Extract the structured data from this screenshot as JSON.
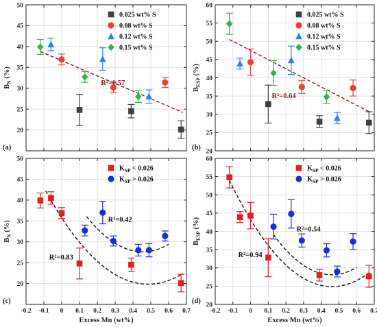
{
  "panels": [
    {
      "id": "a",
      "panel_label": "(a)",
      "ylabel_main": "B",
      "ylabel_sub": "N",
      "ylabel_tail": " (%)",
      "yticks": [
        20,
        25,
        30,
        35,
        40,
        45,
        50
      ],
      "show_xticks": false,
      "legend": [
        {
          "label": "0.025 wt% S",
          "marker": "square",
          "color": "#404040"
        },
        {
          "label": "0.08 wt% S",
          "marker": "circle",
          "color": "#e8423c"
        },
        {
          "label": "0.12 wt% S",
          "marker": "triangle",
          "color": "#2f86d9"
        },
        {
          "label": "0.15 wt% S",
          "marker": "diamond",
          "color": "#3dae56"
        }
      ],
      "annotations": [
        {
          "text": "R²=0.57",
          "x": 0.22,
          "y": 30.8,
          "color": "#8b1a1a"
        }
      ],
      "fits": [
        {
          "type": "line",
          "x0": -0.12,
          "x1": 0.68,
          "y": [
            38.8,
            24.2
          ],
          "color": "#8b1a1a"
        }
      ]
    },
    {
      "id": "b",
      "panel_label": "(b)",
      "ylabel_main": "B",
      "ylabel_sub": "ESP",
      "ylabel_tail": " (%)",
      "yticks": [
        20,
        25,
        30,
        35,
        40,
        45,
        50,
        55,
        60
      ],
      "show_xticks": false,
      "legend": [
        {
          "label": "0.025 wt% S",
          "marker": "square",
          "color": "#404040"
        },
        {
          "label": "0.08 wt% S",
          "marker": "circle",
          "color": "#e8423c"
        },
        {
          "label": "0.12 wt% S",
          "marker": "triangle",
          "color": "#2f86d9"
        },
        {
          "label": "0.15 wt% S",
          "marker": "diamond",
          "color": "#3dae56"
        }
      ],
      "annotations": [
        {
          "text": "R²=0.64",
          "x": 0.12,
          "y": 34.5,
          "color": "#8b1a1a"
        }
      ],
      "fits": [
        {
          "type": "line",
          "x0": -0.12,
          "x1": 0.68,
          "y": [
            50.5,
            30.5
          ],
          "color": "#8b1a1a"
        }
      ]
    },
    {
      "id": "c",
      "panel_label": "(c)",
      "ylabel_main": "B",
      "ylabel_sub": "N",
      "ylabel_tail": " (%)",
      "yticks": [
        20,
        25,
        30,
        35,
        40,
        45,
        50
      ],
      "show_xticks": true,
      "legend": [
        {
          "label": "K",
          "sub": "SP",
          "tail": " < 0.026",
          "marker": "square",
          "color": "#e81e1e"
        },
        {
          "label": "K",
          "sub": "SP",
          "tail": " > 0.026",
          "marker": "circle",
          "color": "#1f2bd6"
        }
      ],
      "annotations": [
        {
          "text": "R²=0.42",
          "x": 0.26,
          "y": 34.8,
          "color": "#111"
        },
        {
          "text": "R²=0.83",
          "x": -0.07,
          "y": 25.8,
          "color": "#111"
        }
      ],
      "fits": [
        {
          "type": "quad",
          "x0": 0.14,
          "x1": 0.6,
          "coef": [
            45.22,
            -77.44,
            85.1
          ],
          "color": "#111"
        },
        {
          "type": "quad",
          "x0": -0.09,
          "x1": 0.68,
          "coef": [
            35.75,
            -65.6,
            67.6
          ],
          "color": "#111"
        }
      ]
    },
    {
      "id": "d",
      "panel_label": "(d)",
      "ylabel_main": "B",
      "ylabel_sub": "ESP",
      "ylabel_tail": " (%)",
      "yticks": [
        20,
        25,
        30,
        35,
        40,
        45,
        50,
        55,
        60
      ],
      "show_xticks": true,
      "legend": [
        {
          "label": "K",
          "sub": "SP",
          "tail": " < 0.026",
          "marker": "square",
          "color": "#e81e1e"
        },
        {
          "label": "K",
          "sub": "SP",
          "tail": " > 0.026",
          "marker": "circle",
          "color": "#1f2bd6"
        }
      ],
      "annotations": [
        {
          "text": "R²=0.54",
          "x": 0.26,
          "y": 40.0,
          "color": "#111"
        },
        {
          "text": "R²=0.94",
          "x": -0.07,
          "y": 33.0,
          "color": "#111"
        }
      ],
      "fits": [
        {
          "type": "quad",
          "x0": 0.13,
          "x1": 0.6,
          "coef": [
            49.5,
            -93.1,
            101.3
          ],
          "color": "#111"
        },
        {
          "type": "quad",
          "x0": -0.12,
          "x1": 0.68,
          "coef": [
            43.23,
            -79.5,
            86.1
          ],
          "color": "#111"
        }
      ]
    }
  ],
  "xticks": [
    -0.2,
    -0.1,
    0,
    0.1,
    0.2,
    0.3,
    0.4,
    0.5,
    0.6,
    0.7
  ],
  "xtick_labels": [
    "-0.2",
    "-0.1",
    "0",
    "0.1",
    "0.2",
    "0.3",
    "0.4",
    "0.5",
    "0.6",
    "0.7"
  ],
  "xlabel": "Excess Mn (wt%)",
  "chart_data": [
    {
      "type": "scatter",
      "panel": "a",
      "xlim": [
        -0.2,
        0.7
      ],
      "ylim": [
        15,
        50
      ],
      "xlabel": "",
      "ylabel": "BN (%)",
      "legend_position": "top-right",
      "grid": true,
      "series": [
        {
          "name": "0.025 wt% S",
          "marker": "square",
          "color": "#404040",
          "points": [
            {
              "x": 0.1,
              "y": 24.8,
              "err": 3.7
            },
            {
              "x": 0.39,
              "y": 24.5,
              "err": 1.6
            },
            {
              "x": 0.67,
              "y": 20.1,
              "err": 2.1
            }
          ]
        },
        {
          "name": "0.08 wt% S",
          "marker": "circle",
          "color": "#e8423c",
          "points": [
            {
              "x": 0.0,
              "y": 36.9,
              "err": 1.3
            },
            {
              "x": 0.29,
              "y": 30.2,
              "err": 1.2
            },
            {
              "x": 0.58,
              "y": 31.4,
              "err": 1.2
            }
          ]
        },
        {
          "name": "0.12 wt% S",
          "marker": "triangle",
          "color": "#2f86d9",
          "points": [
            {
              "x": -0.06,
              "y": 40.5,
              "err": 1.5
            },
            {
              "x": 0.23,
              "y": 37.0,
              "err": 2.7
            },
            {
              "x": 0.49,
              "y": 28.0,
              "err": 1.6
            }
          ]
        },
        {
          "name": "0.15 wt% S",
          "marker": "diamond",
          "color": "#3dae56",
          "points": [
            {
              "x": -0.12,
              "y": 39.9,
              "err": 1.8
            },
            {
              "x": 0.13,
              "y": 32.7,
              "err": 1.3
            },
            {
              "x": 0.43,
              "y": 28.0,
              "err": 1.4
            }
          ]
        }
      ]
    },
    {
      "type": "scatter",
      "panel": "b",
      "xlim": [
        -0.2,
        0.7
      ],
      "ylim": [
        20,
        60
      ],
      "xlabel": "",
      "ylabel": "BESP (%)",
      "legend_position": "top-right",
      "grid": true,
      "series": [
        {
          "name": "0.025 wt% S",
          "marker": "square",
          "color": "#404040",
          "points": [
            {
              "x": 0.1,
              "y": 32.8,
              "err": 5.2
            },
            {
              "x": 0.39,
              "y": 28.0,
              "err": 1.6
            },
            {
              "x": 0.67,
              "y": 27.7,
              "err": 3.0
            }
          ]
        },
        {
          "name": "0.08 wt% S",
          "marker": "circle",
          "color": "#e8423c",
          "points": [
            {
              "x": 0.0,
              "y": 44.3,
              "err": 3.6
            },
            {
              "x": 0.29,
              "y": 37.5,
              "err": 1.8
            },
            {
              "x": 0.58,
              "y": 37.2,
              "err": 2.2
            }
          ]
        },
        {
          "name": "0.12 wt% S",
          "marker": "triangle",
          "color": "#2f86d9",
          "points": [
            {
              "x": -0.06,
              "y": 43.9,
              "err": 1.5
            },
            {
              "x": 0.23,
              "y": 44.8,
              "err": 3.9
            },
            {
              "x": 0.49,
              "y": 29.0,
              "err": 1.5
            }
          ]
        },
        {
          "name": "0.15 wt% S",
          "marker": "diamond",
          "color": "#3dae56",
          "points": [
            {
              "x": -0.12,
              "y": 54.8,
              "err": 2.9
            },
            {
              "x": 0.13,
              "y": 41.3,
              "err": 3.4
            },
            {
              "x": 0.43,
              "y": 34.8,
              "err": 1.8
            }
          ]
        }
      ]
    },
    {
      "type": "scatter",
      "panel": "c",
      "xlim": [
        -0.2,
        0.7
      ],
      "ylim": [
        15,
        50
      ],
      "xlabel": "Excess Mn (wt%)",
      "ylabel": "BN (%)",
      "legend_position": "top-right",
      "grid": true,
      "series": [
        {
          "name": "KSP < 0.026",
          "marker": "square",
          "color": "#e81e1e",
          "points": [
            {
              "x": -0.12,
              "y": 39.9,
              "err": 1.8
            },
            {
              "x": -0.06,
              "y": 40.5,
              "err": 1.5
            },
            {
              "x": 0.0,
              "y": 36.9,
              "err": 1.3
            },
            {
              "x": 0.1,
              "y": 24.8,
              "err": 3.7
            },
            {
              "x": 0.39,
              "y": 24.5,
              "err": 1.6
            },
            {
              "x": 0.67,
              "y": 20.1,
              "err": 2.1
            }
          ]
        },
        {
          "name": "KSP > 0.026",
          "marker": "circle",
          "color": "#1f2bd6",
          "points": [
            {
              "x": 0.13,
              "y": 32.7,
              "err": 1.3
            },
            {
              "x": 0.23,
              "y": 37.0,
              "err": 2.7
            },
            {
              "x": 0.29,
              "y": 30.2,
              "err": 1.2
            },
            {
              "x": 0.43,
              "y": 28.0,
              "err": 1.4
            },
            {
              "x": 0.49,
              "y": 28.0,
              "err": 1.6
            },
            {
              "x": 0.58,
              "y": 31.4,
              "err": 1.2
            }
          ]
        }
      ]
    },
    {
      "type": "scatter",
      "panel": "d",
      "xlim": [
        -0.2,
        0.7
      ],
      "ylim": [
        20,
        60
      ],
      "xlabel": "Excess Mn (wt%)",
      "ylabel": "BESP (%)",
      "legend_position": "top-right",
      "grid": true,
      "series": [
        {
          "name": "KSP < 0.026",
          "marker": "square",
          "color": "#e81e1e",
          "points": [
            {
              "x": -0.12,
              "y": 54.8,
              "err": 2.9
            },
            {
              "x": -0.06,
              "y": 43.9,
              "err": 1.5
            },
            {
              "x": 0.0,
              "y": 44.3,
              "err": 3.6
            },
            {
              "x": 0.1,
              "y": 32.8,
              "err": 5.2
            },
            {
              "x": 0.39,
              "y": 28.0,
              "err": 1.6
            },
            {
              "x": 0.67,
              "y": 27.7,
              "err": 3.0
            }
          ]
        },
        {
          "name": "KSP > 0.026",
          "marker": "circle",
          "color": "#1f2bd6",
          "points": [
            {
              "x": 0.13,
              "y": 41.3,
              "err": 3.4
            },
            {
              "x": 0.23,
              "y": 44.8,
              "err": 3.9
            },
            {
              "x": 0.29,
              "y": 37.5,
              "err": 1.8
            },
            {
              "x": 0.43,
              "y": 34.8,
              "err": 1.8
            },
            {
              "x": 0.49,
              "y": 29.0,
              "err": 1.5
            },
            {
              "x": 0.58,
              "y": 37.2,
              "err": 2.2
            }
          ]
        }
      ]
    }
  ]
}
